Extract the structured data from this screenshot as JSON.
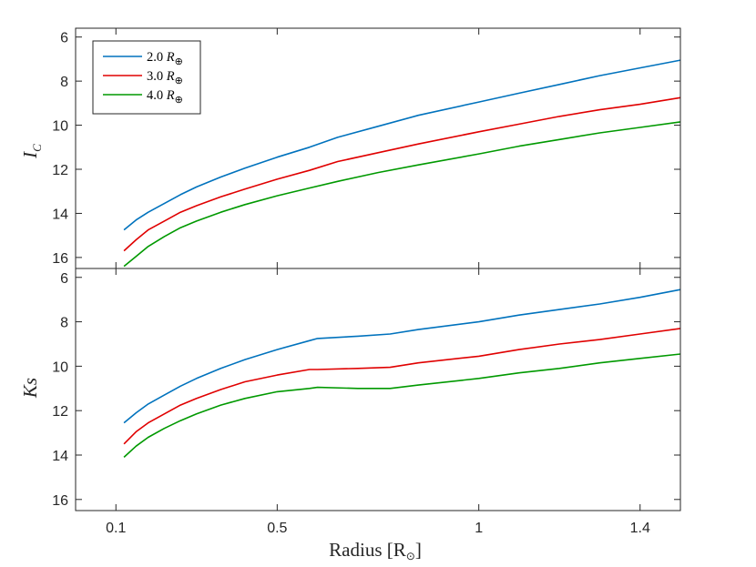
{
  "chart_data": [
    {
      "type": "line",
      "ylabel": "I",
      "ylabel_sub": "C",
      "yreversed": true,
      "ylim": [
        16.5,
        5.6
      ],
      "xlim": [
        0,
        1.5
      ],
      "yticks": [
        6,
        8,
        10,
        12,
        14,
        16
      ],
      "legend": "top-left",
      "series": [
        {
          "name": "2.0 R",
          "color": "#0072BD",
          "x": [
            0.12,
            0.15,
            0.18,
            0.22,
            0.26,
            0.3,
            0.36,
            0.42,
            0.5,
            0.58,
            0.65,
            0.75,
            0.85,
            1.0,
            1.1,
            1.2,
            1.3,
            1.4,
            1.5
          ],
          "y": [
            14.75,
            14.3,
            13.95,
            13.55,
            13.15,
            12.8,
            12.35,
            11.95,
            11.45,
            11.0,
            10.55,
            10.05,
            9.55,
            8.95,
            8.55,
            8.15,
            7.75,
            7.4,
            7.05
          ]
        },
        {
          "name": "3.0 R",
          "color": "#E00000",
          "x": [
            0.12,
            0.15,
            0.18,
            0.22,
            0.26,
            0.3,
            0.36,
            0.42,
            0.5,
            0.58,
            0.65,
            0.75,
            0.85,
            1.0,
            1.1,
            1.2,
            1.3,
            1.4,
            1.5
          ],
          "y": [
            15.7,
            15.2,
            14.75,
            14.35,
            13.95,
            13.65,
            13.25,
            12.9,
            12.45,
            12.05,
            11.65,
            11.25,
            10.85,
            10.3,
            9.95,
            9.6,
            9.3,
            9.05,
            8.75
          ]
        },
        {
          "name": "4.0 R",
          "color": "#009900",
          "x": [
            0.12,
            0.15,
            0.18,
            0.22,
            0.26,
            0.3,
            0.36,
            0.42,
            0.5,
            0.58,
            0.65,
            0.75,
            0.85,
            1.0,
            1.1,
            1.2,
            1.3,
            1.4,
            1.5
          ],
          "y": [
            16.4,
            15.95,
            15.5,
            15.05,
            14.65,
            14.35,
            13.95,
            13.6,
            13.2,
            12.85,
            12.55,
            12.15,
            11.8,
            11.3,
            10.95,
            10.65,
            10.35,
            10.1,
            9.85
          ]
        }
      ]
    },
    {
      "type": "line",
      "ylabel": "Ks",
      "yreversed": true,
      "ylim": [
        16.5,
        5.6
      ],
      "xlim": [
        0,
        1.5
      ],
      "xlabel": "Radius [R",
      "xticks": [
        0.1,
        0.5,
        1,
        1.4
      ],
      "yticks": [
        6,
        8,
        10,
        12,
        14,
        16
      ],
      "series": [
        {
          "name": "2.0 R",
          "color": "#0072BD",
          "x": [
            0.12,
            0.15,
            0.18,
            0.22,
            0.26,
            0.3,
            0.36,
            0.42,
            0.5,
            0.58,
            0.6,
            0.7,
            0.78,
            0.85,
            1.0,
            1.1,
            1.2,
            1.3,
            1.4,
            1.5
          ],
          "y": [
            12.55,
            12.1,
            11.7,
            11.3,
            10.9,
            10.55,
            10.1,
            9.7,
            9.25,
            8.85,
            8.75,
            8.65,
            8.55,
            8.35,
            8.0,
            7.7,
            7.45,
            7.2,
            6.9,
            6.55
          ]
        },
        {
          "name": "3.0 R",
          "color": "#E00000",
          "x": [
            0.12,
            0.15,
            0.18,
            0.22,
            0.26,
            0.3,
            0.36,
            0.42,
            0.5,
            0.58,
            0.6,
            0.7,
            0.78,
            0.85,
            1.0,
            1.1,
            1.2,
            1.3,
            1.4,
            1.5
          ],
          "y": [
            13.5,
            12.95,
            12.55,
            12.15,
            11.75,
            11.45,
            11.05,
            10.7,
            10.4,
            10.15,
            10.15,
            10.1,
            10.05,
            9.85,
            9.55,
            9.25,
            9.0,
            8.8,
            8.55,
            8.3
          ]
        },
        {
          "name": "4.0 R",
          "color": "#009900",
          "x": [
            0.12,
            0.15,
            0.18,
            0.22,
            0.26,
            0.3,
            0.36,
            0.42,
            0.5,
            0.58,
            0.6,
            0.7,
            0.78,
            0.85,
            1.0,
            1.1,
            1.2,
            1.3,
            1.4,
            1.5
          ],
          "y": [
            14.1,
            13.6,
            13.2,
            12.8,
            12.45,
            12.15,
            11.75,
            11.45,
            11.15,
            11.0,
            10.95,
            11.0,
            11.0,
            10.85,
            10.55,
            10.3,
            10.1,
            9.85,
            9.65,
            9.45
          ]
        }
      ]
    }
  ]
}
